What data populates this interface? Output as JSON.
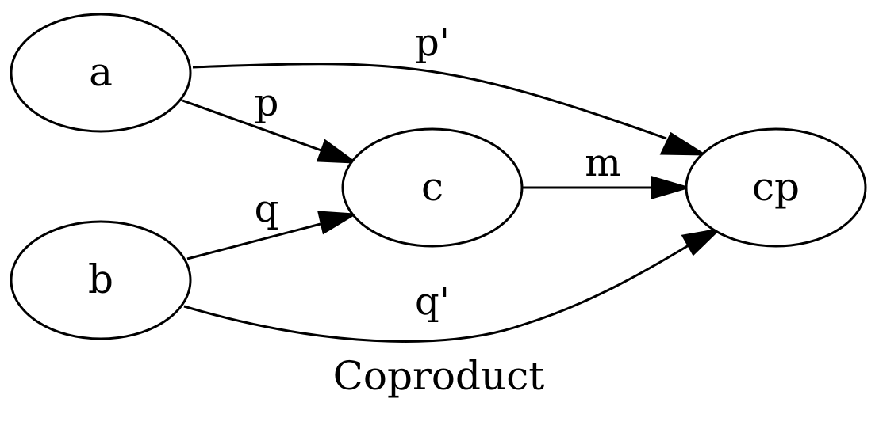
{
  "diagram": {
    "caption": "Coproduct",
    "stroke_color": "#000000",
    "background_color": "#ffffff",
    "nodes": {
      "a": "a",
      "b": "b",
      "c": "c",
      "cp": "cp"
    },
    "edges": {
      "a_c": "p",
      "b_c": "q",
      "c_cp": "m",
      "a_cp": "p'",
      "b_cp": "q'"
    }
  }
}
